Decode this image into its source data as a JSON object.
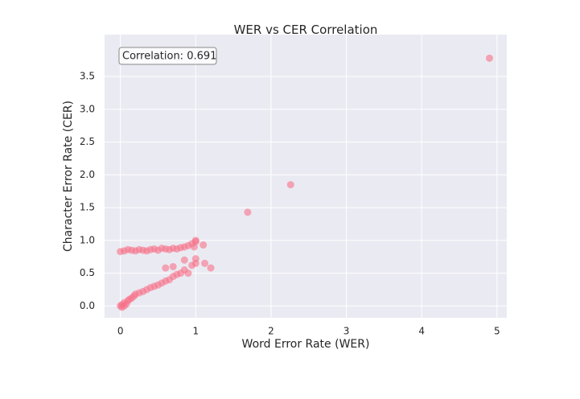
{
  "chart_data": {
    "type": "scatter",
    "title": "WER vs CER Correlation",
    "x_label": "Word Error Rate (WER)",
    "y_label": "Character Error Rate (CER)",
    "annotation": "Correlation: 0.691",
    "color": "#f77189",
    "grid": true,
    "xlim": [
      -0.21,
      5.13
    ],
    "ylim": [
      -0.18,
      4.14
    ],
    "xticks": [
      0,
      1,
      2,
      3,
      4,
      5
    ],
    "yticks": [
      {
        "value": 0,
        "label": "0.0"
      },
      0.5,
      {
        "value": 1,
        "label": "1.0"
      },
      1.5,
      {
        "value": 2,
        "label": "2.0"
      },
      2.5,
      {
        "value": 3,
        "label": "3.0"
      },
      3.5
    ],
    "x": [
      0,
      0.05,
      0.1,
      0.15,
      0.2,
      0.25,
      0.3,
      0.35,
      0.4,
      0.45,
      0.5,
      0.55,
      0.6,
      0.65,
      0.7,
      0.75,
      0.8,
      0.85,
      0.9,
      0.95,
      1.0,
      1.0,
      0.98,
      1.1,
      0,
      0.02,
      0.05,
      0.08,
      0.1,
      0.12,
      0.15,
      0.18,
      0.2,
      0.25,
      0.3,
      0.35,
      0.4,
      0.45,
      0.5,
      0.55,
      0.6,
      0.65,
      0.7,
      0.75,
      0.8,
      0.85,
      0.9,
      0.95,
      1.0,
      0.6,
      0.7,
      0.85,
      1.0,
      1.12,
      1.2,
      0.02,
      0.05,
      1.69,
      2.26,
      4.9
    ],
    "y": [
      0.83,
      0.84,
      0.86,
      0.85,
      0.84,
      0.86,
      0.85,
      0.84,
      0.86,
      0.87,
      0.85,
      0.88,
      0.87,
      0.86,
      0.88,
      0.87,
      0.89,
      0.9,
      0.92,
      0.95,
      0.98,
      1.0,
      0.9,
      0.93,
      0.0,
      0.02,
      0.05,
      0.03,
      0.08,
      0.1,
      0.12,
      0.15,
      0.18,
      0.2,
      0.22,
      0.25,
      0.28,
      0.3,
      0.32,
      0.35,
      0.38,
      0.4,
      0.45,
      0.48,
      0.5,
      0.55,
      0.5,
      0.62,
      0.65,
      0.58,
      0.6,
      0.7,
      0.72,
      0.65,
      0.58,
      -0.02,
      0.0,
      1.43,
      1.85,
      3.78
    ]
  }
}
